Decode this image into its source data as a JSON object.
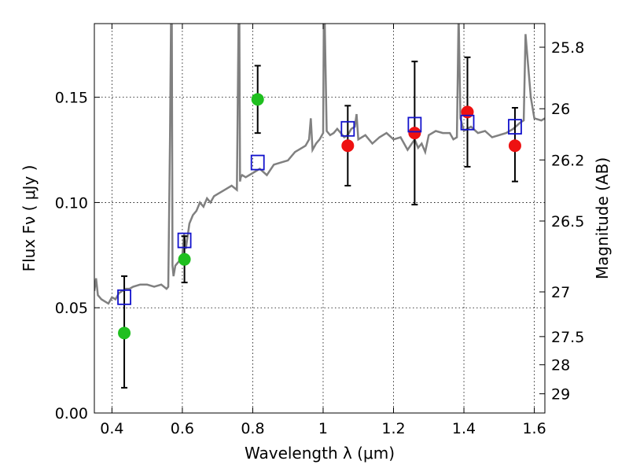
{
  "chart_data": {
    "type": "scatter",
    "xlabel": "Wavelength  λ (μm)",
    "ylabel": "Flux  Fν  ( μJy )",
    "right_ylabel": "Magnitude (AB)",
    "xlim": [
      0.35,
      1.63
    ],
    "ylim": [
      0.0,
      0.185
    ],
    "grid": true,
    "x_ticks": [
      0.4,
      0.6,
      0.8,
      1.0,
      1.2,
      1.4,
      1.6
    ],
    "x_tick_labels": [
      "0.4",
      "0.6",
      "0.8",
      "1",
      "1.2",
      "1.4",
      "1.6"
    ],
    "y_ticks": [
      0.0,
      0.05,
      0.1,
      0.15
    ],
    "y_tick_labels": [
      "0.00",
      "0.05",
      "0.10",
      "0.15"
    ],
    "mag_ticks": [
      25.8,
      26,
      26.2,
      26.5,
      27,
      27.5,
      28,
      29
    ],
    "mag_tick_labels": [
      "25.8",
      "26",
      "26.2",
      "26.5",
      "27",
      "27.5",
      "28",
      "29"
    ],
    "series": [
      {
        "marker": "circle",
        "color": "#1fbf1f",
        "points": [
          {
            "x": 0.435,
            "y": 0.038
          },
          {
            "x": 0.606,
            "y": 0.073
          },
          {
            "x": 0.814,
            "y": 0.149
          }
        ]
      },
      {
        "marker": "circle",
        "color": "#ee1111",
        "points": [
          {
            "x": 1.07,
            "y": 0.127
          },
          {
            "x": 1.26,
            "y": 0.133
          },
          {
            "x": 1.41,
            "y": 0.143
          },
          {
            "x": 1.545,
            "y": 0.127
          }
        ]
      },
      {
        "marker": "square-open",
        "color": "#1111cc",
        "points": [
          {
            "x": 0.435,
            "y": 0.055
          },
          {
            "x": 0.606,
            "y": 0.082
          },
          {
            "x": 0.814,
            "y": 0.119
          },
          {
            "x": 1.07,
            "y": 0.135
          },
          {
            "x": 1.26,
            "y": 0.137
          },
          {
            "x": 1.41,
            "y": 0.138
          },
          {
            "x": 1.545,
            "y": 0.136
          }
        ]
      }
    ],
    "error_bars": [
      {
        "x": 0.435,
        "low": 0.012,
        "high": 0.065
      },
      {
        "x": 0.606,
        "low": 0.062,
        "high": 0.084
      },
      {
        "x": 0.814,
        "low": 0.133,
        "high": 0.165
      },
      {
        "x": 1.07,
        "low": 0.108,
        "high": 0.146
      },
      {
        "x": 1.26,
        "low": 0.099,
        "high": 0.167
      },
      {
        "x": 1.41,
        "low": 0.117,
        "high": 0.169
      },
      {
        "x": 1.545,
        "low": 0.11,
        "high": 0.145
      }
    ],
    "model_spectrum": {
      "color": "#808080",
      "x": [
        0.35,
        0.355,
        0.36,
        0.37,
        0.38,
        0.39,
        0.4,
        0.41,
        0.42,
        0.43,
        0.44,
        0.45,
        0.46,
        0.48,
        0.5,
        0.52,
        0.54,
        0.555,
        0.56,
        0.565,
        0.568,
        0.57,
        0.572,
        0.575,
        0.58,
        0.59,
        0.6,
        0.605,
        0.61,
        0.62,
        0.63,
        0.64,
        0.65,
        0.66,
        0.67,
        0.68,
        0.69,
        0.7,
        0.72,
        0.74,
        0.755,
        0.76,
        0.762,
        0.764,
        0.766,
        0.77,
        0.78,
        0.8,
        0.82,
        0.84,
        0.86,
        0.88,
        0.9,
        0.92,
        0.94,
        0.95,
        0.96,
        0.965,
        0.97,
        0.98,
        0.99,
        1.0,
        1.002,
        1.004,
        1.01,
        1.02,
        1.03,
        1.04,
        1.05,
        1.06,
        1.07,
        1.08,
        1.09,
        1.095,
        1.1,
        1.12,
        1.14,
        1.16,
        1.18,
        1.2,
        1.22,
        1.24,
        1.26,
        1.27,
        1.28,
        1.29,
        1.3,
        1.32,
        1.34,
        1.36,
        1.37,
        1.38,
        1.385,
        1.39,
        1.4,
        1.42,
        1.44,
        1.46,
        1.48,
        1.5,
        1.52,
        1.54,
        1.56,
        1.57,
        1.575,
        1.58,
        1.59,
        1.6,
        1.62,
        1.63
      ],
      "y": [
        0.058,
        0.064,
        0.056,
        0.054,
        0.053,
        0.052,
        0.055,
        0.054,
        0.057,
        0.058,
        0.059,
        0.059,
        0.06,
        0.061,
        0.061,
        0.06,
        0.061,
        0.059,
        0.06,
        0.13,
        0.19,
        0.19,
        0.07,
        0.065,
        0.07,
        0.072,
        0.075,
        0.085,
        0.078,
        0.09,
        0.094,
        0.096,
        0.1,
        0.098,
        0.102,
        0.1,
        0.103,
        0.104,
        0.106,
        0.108,
        0.106,
        0.19,
        0.19,
        0.11,
        0.112,
        0.113,
        0.112,
        0.114,
        0.116,
        0.113,
        0.118,
        0.119,
        0.12,
        0.124,
        0.126,
        0.127,
        0.13,
        0.14,
        0.125,
        0.128,
        0.13,
        0.133,
        0.19,
        0.19,
        0.134,
        0.132,
        0.133,
        0.135,
        0.133,
        0.131,
        0.132,
        0.135,
        0.136,
        0.142,
        0.13,
        0.132,
        0.128,
        0.131,
        0.133,
        0.13,
        0.131,
        0.125,
        0.13,
        0.126,
        0.128,
        0.124,
        0.132,
        0.134,
        0.133,
        0.133,
        0.13,
        0.131,
        0.19,
        0.14,
        0.134,
        0.136,
        0.133,
        0.134,
        0.131,
        0.132,
        0.133,
        0.135,
        0.138,
        0.139,
        0.18,
        0.17,
        0.15,
        0.14,
        0.139,
        0.14
      ]
    }
  }
}
